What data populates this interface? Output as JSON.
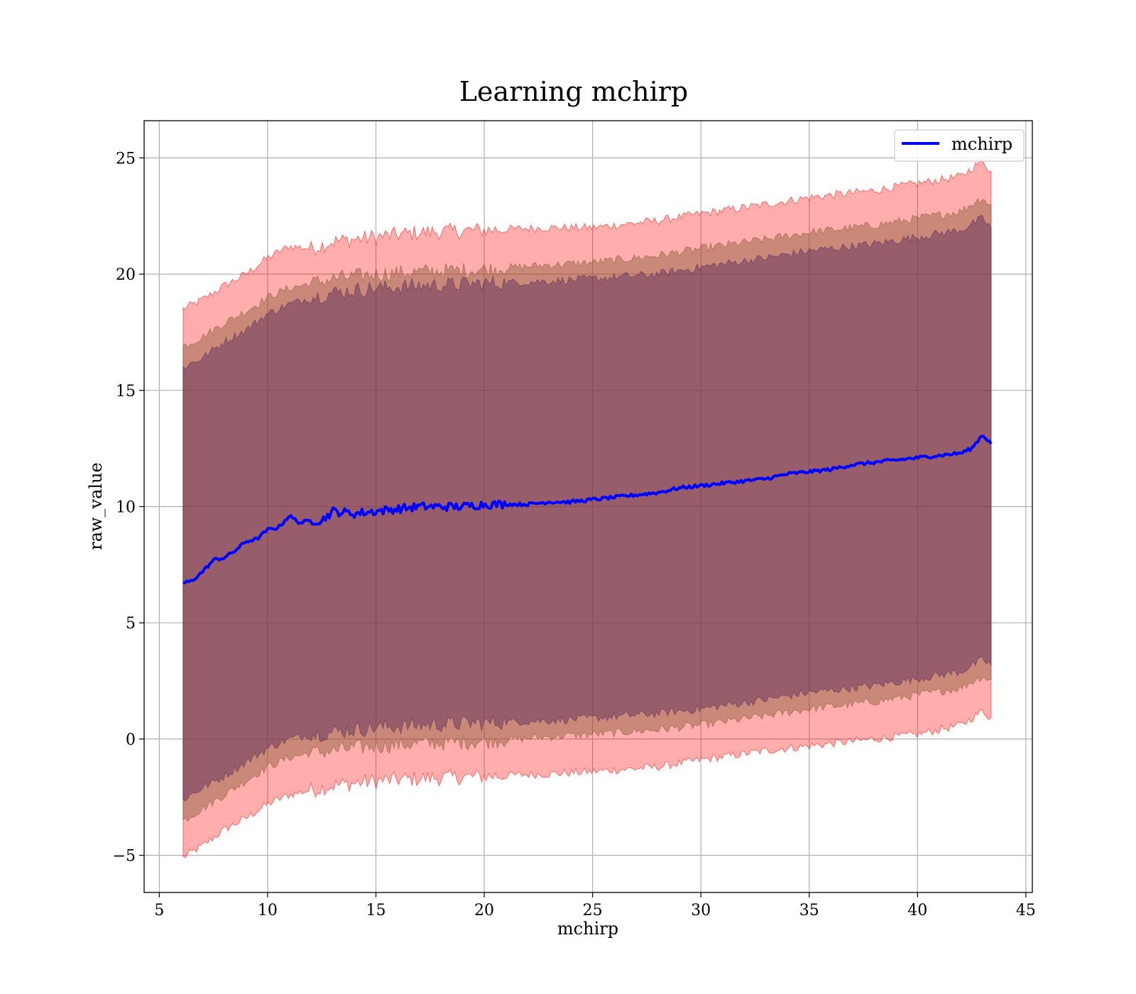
{
  "chart_data": {
    "type": "line",
    "title": "Learning mchirp",
    "xlabel": "mchirp",
    "ylabel": "raw_value",
    "xlim": [
      4.3,
      45.3
    ],
    "ylim": [
      -6.6,
      26.6
    ],
    "xticks": [
      5,
      10,
      15,
      20,
      25,
      30,
      35,
      40,
      45
    ],
    "yticks": [
      -5,
      0,
      5,
      10,
      15,
      20,
      25
    ],
    "xtick_labels": [
      "5",
      "10",
      "15",
      "20",
      "25",
      "30",
      "35",
      "40",
      "45"
    ],
    "ytick_labels": [
      "−5",
      "0",
      "5",
      "10",
      "15",
      "20",
      "25"
    ],
    "grid": true,
    "legend_position": "top-right",
    "series": [
      {
        "name": "mchirp",
        "color": "#0000ff",
        "x": [
          6.1,
          6.5,
          7.0,
          7.5,
          8.0,
          8.5,
          9.0,
          9.5,
          10.0,
          10.5,
          11.0,
          11.5,
          12.0,
          12.5,
          13.0,
          14.0,
          15.0,
          16.0,
          17.0,
          18.0,
          19.0,
          20.0,
          21.0,
          22.0,
          23.0,
          24.0,
          25.0,
          26.0,
          27.0,
          28.0,
          29.0,
          30.0,
          31.0,
          32.0,
          33.0,
          34.0,
          35.0,
          36.0,
          37.0,
          38.0,
          39.0,
          40.0,
          41.0,
          42.0,
          42.5,
          43.0,
          43.4
        ],
        "y": [
          6.7,
          6.8,
          7.2,
          7.7,
          7.8,
          8.1,
          8.5,
          8.6,
          9.0,
          9.1,
          9.6,
          9.3,
          9.4,
          9.4,
          9.8,
          9.7,
          9.8,
          9.9,
          10.0,
          10.0,
          10.0,
          10.1,
          10.1,
          10.1,
          10.2,
          10.2,
          10.3,
          10.4,
          10.5,
          10.6,
          10.8,
          10.9,
          11.0,
          11.1,
          11.2,
          11.4,
          11.5,
          11.6,
          11.8,
          11.9,
          12.0,
          12.1,
          12.2,
          12.3,
          12.5,
          13.1,
          12.7
        ]
      }
    ],
    "bands": [
      {
        "color": "#ff0000",
        "opacity": 0.32,
        "x": [
          6.1,
          7.0,
          8.0,
          9.0,
          10.0,
          11.0,
          12.0,
          13.0,
          14.0,
          15.0,
          17.0,
          20.0,
          23.0,
          25.0,
          28.0,
          30.0,
          33.0,
          35.0,
          38.0,
          40.0,
          42.0,
          43.0,
          43.4
        ],
        "upper": [
          18.5,
          18.9,
          19.5,
          20.0,
          20.7,
          21.2,
          21.1,
          21.4,
          21.5,
          21.6,
          21.8,
          21.9,
          22.0,
          22.0,
          22.3,
          22.6,
          23.0,
          23.3,
          23.6,
          23.9,
          24.2,
          24.9,
          24.4
        ],
        "lower": [
          -5.1,
          -4.6,
          -3.9,
          -3.4,
          -2.8,
          -2.4,
          -2.2,
          -2.0,
          -1.9,
          -1.8,
          -1.7,
          -1.6,
          -1.5,
          -1.4,
          -1.2,
          -0.9,
          -0.5,
          -0.3,
          0.0,
          0.2,
          0.6,
          1.2,
          0.9
        ]
      },
      {
        "color": "#8a5a3a",
        "opacity": 0.45,
        "x": [
          6.1,
          7.0,
          8.0,
          9.0,
          10.0,
          11.0,
          12.0,
          13.0,
          14.0,
          15.0,
          17.0,
          20.0,
          23.0,
          25.0,
          28.0,
          30.0,
          33.0,
          35.0,
          38.0,
          40.0,
          42.0,
          43.0,
          43.4
        ],
        "upper": [
          16.9,
          17.3,
          17.9,
          18.4,
          19.0,
          19.4,
          19.6,
          19.8,
          19.9,
          20.0,
          20.1,
          20.2,
          20.4,
          20.5,
          20.8,
          21.1,
          21.5,
          21.8,
          22.1,
          22.4,
          22.7,
          23.3,
          22.9
        ],
        "lower": [
          -3.5,
          -3.0,
          -2.4,
          -1.8,
          -1.2,
          -0.8,
          -0.6,
          -0.5,
          -0.4,
          -0.3,
          -0.2,
          -0.1,
          0.1,
          0.2,
          0.4,
          0.6,
          1.0,
          1.3,
          1.6,
          1.9,
          2.2,
          2.7,
          2.5
        ]
      },
      {
        "color": "#5a2a5a",
        "opacity": 0.45,
        "x": [
          6.1,
          7.0,
          8.0,
          9.0,
          10.0,
          11.0,
          12.0,
          13.0,
          14.0,
          15.0,
          17.0,
          20.0,
          23.0,
          25.0,
          28.0,
          30.0,
          33.0,
          35.0,
          38.0,
          40.0,
          42.0,
          43.0,
          43.4
        ],
        "upper": [
          16.0,
          16.4,
          17.1,
          17.6,
          18.3,
          18.7,
          19.0,
          19.2,
          19.3,
          19.4,
          19.5,
          19.6,
          19.7,
          19.8,
          20.0,
          20.3,
          20.7,
          21.0,
          21.3,
          21.6,
          21.9,
          22.4,
          22.0
        ],
        "lower": [
          -2.6,
          -2.1,
          -1.6,
          -1.0,
          -0.4,
          0.0,
          0.2,
          0.3,
          0.4,
          0.5,
          0.6,
          0.7,
          0.8,
          0.9,
          1.1,
          1.3,
          1.7,
          2.0,
          2.3,
          2.6,
          2.9,
          3.4,
          3.2
        ]
      }
    ]
  }
}
